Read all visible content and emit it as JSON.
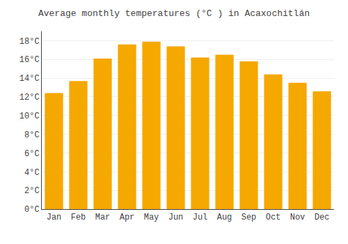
{
  "chart_data": {
    "type": "bar",
    "title": "Average monthly temperatures (°C ) in Acaxochitlán",
    "categories": [
      "Jan",
      "Feb",
      "Mar",
      "Apr",
      "May",
      "Jun",
      "Jul",
      "Aug",
      "Sep",
      "Oct",
      "Nov",
      "Dec"
    ],
    "values": [
      12.4,
      13.7,
      16.1,
      17.6,
      17.9,
      17.4,
      16.2,
      16.5,
      15.8,
      14.4,
      13.5,
      12.6
    ],
    "color": "#F5A800",
    "ylim": [
      0,
      19
    ],
    "yticks": [
      {
        "value": 0,
        "label": "0°C"
      },
      {
        "value": 2,
        "label": "2°C"
      },
      {
        "value": 4,
        "label": "4°C"
      },
      {
        "value": 6,
        "label": "6°C"
      },
      {
        "value": 8,
        "label": "8°C"
      },
      {
        "value": 10,
        "label": "10°C"
      },
      {
        "value": 12,
        "label": "12°C"
      },
      {
        "value": 14,
        "label": "14°C"
      },
      {
        "value": 16,
        "label": "16°C"
      },
      {
        "value": 18,
        "label": "18°C"
      }
    ],
    "grid": true
  }
}
